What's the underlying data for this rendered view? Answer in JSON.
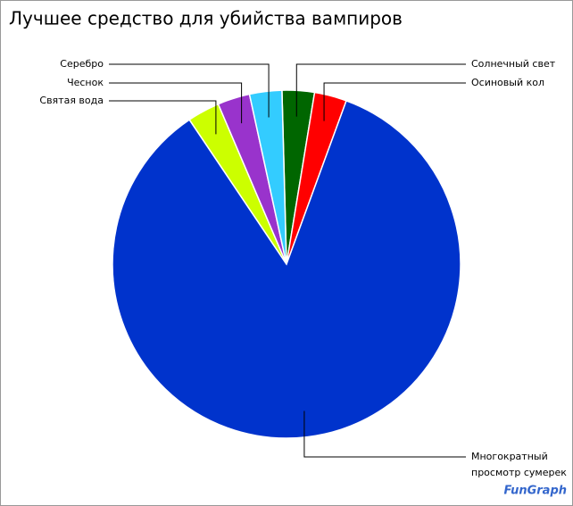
{
  "chart_data": {
    "type": "pie",
    "title": "Лучшее средство для убийства вампиров",
    "categories": [
      "Солнечный свет",
      "Осиновый кол",
      "Многократный просмотр сумерек",
      "Святая вода",
      "Чеснок",
      "Серебро"
    ],
    "values": [
      3,
      3,
      85,
      3,
      3,
      3
    ],
    "colors": [
      "#006600",
      "#ff0000",
      "#0033cc",
      "#ccff00",
      "#9933cc",
      "#33ccff"
    ],
    "watermark": "FunGraph"
  }
}
